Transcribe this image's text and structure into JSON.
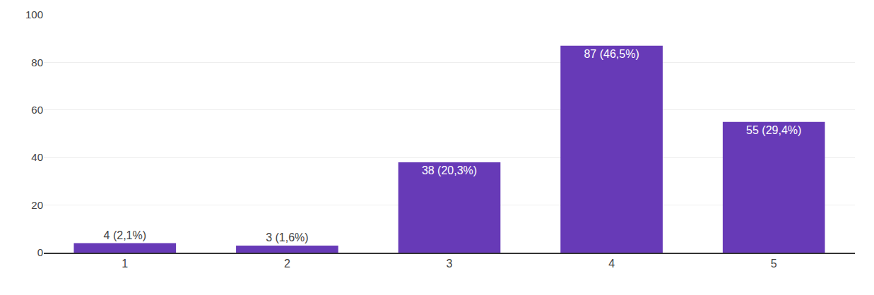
{
  "chart_data": {
    "type": "bar",
    "categories": [
      "1",
      "2",
      "3",
      "4",
      "5"
    ],
    "values": [
      4,
      3,
      38,
      87,
      55
    ],
    "value_labels": [
      "4 (2,1%)",
      "3 (1,6%)",
      "38 (20,3%)",
      "87 (46,5%)",
      "55 (29,4%)"
    ],
    "color": "#673ab7",
    "ylim": [
      0,
      100
    ],
    "yticks": [
      0,
      20,
      40,
      60,
      80,
      100
    ],
    "grid": true,
    "data_labels": true
  }
}
